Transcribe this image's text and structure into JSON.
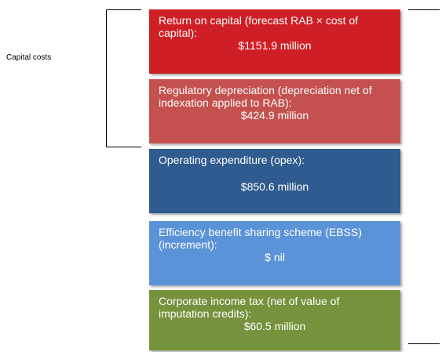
{
  "label": "Capital costs",
  "blocks": [
    {
      "description": "Return on capital (forecast RAB × cost of capital):",
      "amount": "$1151.9 million"
    },
    {
      "description": "Regulatory depreciation (depreciation net of indexation applied to RAB):",
      "amount": "$424.9 million"
    },
    {
      "description": "Operating expenditure (opex):",
      "amount": "$850.6 million"
    },
    {
      "description": "Efficiency benefit sharing scheme (EBSS) (increment):",
      "amount": "$ nil"
    },
    {
      "description": "Corporate income tax (net of value of imputation credits):",
      "amount": "$60.5 million"
    }
  ]
}
